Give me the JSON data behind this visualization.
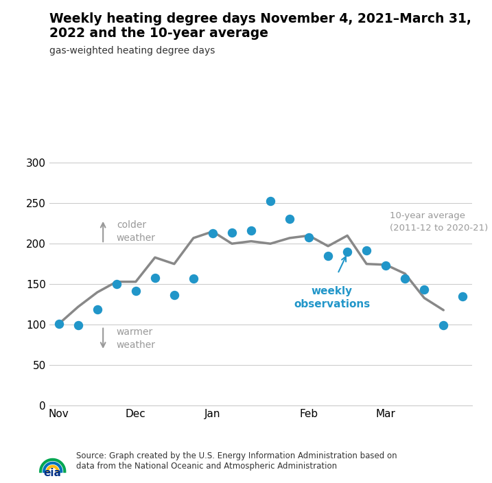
{
  "title_line1": "Weekly heating degree days November 4, 2021–March 31,",
  "title_line2": "2022 and the 10-year average",
  "subtitle": "gas-weighted heating degree days",
  "source_text": "Source: Graph created by the U.S. Energy Information Administration based on\ndata from the National Oceanic and Atmospheric Administration",
  "avg_label": "10-year average\n(2011-12 to 2020-21)",
  "weekly_label": "weekly\nobservations",
  "colder_label": "colder\nweather",
  "warmer_label": "warmer\nweather",
  "avg_color": "#888888",
  "obs_color": "#2196C9",
  "annotation_color": "#2196C9",
  "arrow_color": "#999999",
  "avg_label_color": "#999999",
  "ylim": [
    0,
    310
  ],
  "yticks": [
    0,
    50,
    100,
    150,
    200,
    250,
    300
  ],
  "avg_x": [
    0,
    1,
    2,
    3,
    4,
    5,
    6,
    7,
    8,
    9,
    10,
    11,
    12,
    13,
    14,
    15,
    16,
    17,
    18,
    19,
    20
  ],
  "avg_y": [
    101,
    122,
    140,
    153,
    153,
    183,
    175,
    207,
    215,
    200,
    203,
    200,
    207,
    210,
    197,
    210,
    175,
    174,
    163,
    133,
    118
  ],
  "obs_x": [
    0,
    1,
    2,
    3,
    4,
    5,
    6,
    7,
    8,
    9,
    10,
    11,
    12,
    13,
    14,
    15,
    16,
    17,
    18,
    19,
    20,
    21
  ],
  "obs_y": [
    101,
    99,
    119,
    150,
    142,
    158,
    137,
    157,
    213,
    214,
    216,
    253,
    231,
    208,
    185,
    190,
    192,
    173,
    157,
    143,
    99,
    135
  ],
  "xtick_positions": [
    0,
    4,
    8,
    13,
    17
  ],
  "xtick_labels": [
    "Nov",
    "Dec",
    "Jan",
    "Feb",
    "Mar"
  ],
  "figsize": [
    7.17,
    7.04
  ],
  "dpi": 100
}
